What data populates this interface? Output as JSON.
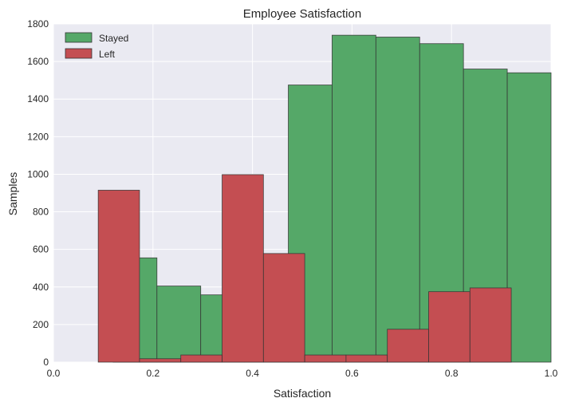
{
  "chart_data": {
    "type": "bar",
    "title": "Employee Satisfaction",
    "xlabel": "Satisfaction",
    "ylabel": "Samples",
    "xlim": [
      0.0,
      1.0
    ],
    "ylim": [
      0,
      1800
    ],
    "xticks": [
      "0.0",
      "0.2",
      "0.4",
      "0.6",
      "0.8",
      "1.0"
    ],
    "yticks": [
      "0",
      "200",
      "400",
      "600",
      "800",
      "1000",
      "1200",
      "1400",
      "1600",
      "1800"
    ],
    "grid": true,
    "legend_position": "top-left",
    "series": [
      {
        "name": "Stayed",
        "color": "#55a868",
        "bins": [
          {
            "x0": 0.12,
            "x1": 0.208,
            "value": 555
          },
          {
            "x0": 0.208,
            "x1": 0.296,
            "value": 405
          },
          {
            "x0": 0.296,
            "x1": 0.384,
            "value": 358
          },
          {
            "x0": 0.384,
            "x1": 0.472,
            "value": 30
          },
          {
            "x0": 0.472,
            "x1": 0.56,
            "value": 1475
          },
          {
            "x0": 0.56,
            "x1": 0.648,
            "value": 1740
          },
          {
            "x0": 0.648,
            "x1": 0.736,
            "value": 1730
          },
          {
            "x0": 0.736,
            "x1": 0.824,
            "value": 1695
          },
          {
            "x0": 0.824,
            "x1": 0.912,
            "value": 1560
          },
          {
            "x0": 0.912,
            "x1": 1.0,
            "value": 1540
          }
        ]
      },
      {
        "name": "Left",
        "color": "#c44e52",
        "bins": [
          {
            "x0": 0.09,
            "x1": 0.173,
            "value": 915
          },
          {
            "x0": 0.173,
            "x1": 0.256,
            "value": 18
          },
          {
            "x0": 0.256,
            "x1": 0.339,
            "value": 38
          },
          {
            "x0": 0.339,
            "x1": 0.422,
            "value": 998
          },
          {
            "x0": 0.422,
            "x1": 0.505,
            "value": 578
          },
          {
            "x0": 0.505,
            "x1": 0.588,
            "value": 38
          },
          {
            "x0": 0.588,
            "x1": 0.671,
            "value": 38
          },
          {
            "x0": 0.671,
            "x1": 0.754,
            "value": 175
          },
          {
            "x0": 0.754,
            "x1": 0.837,
            "value": 375
          },
          {
            "x0": 0.837,
            "x1": 0.92,
            "value": 395
          }
        ]
      }
    ],
    "style": {
      "background": "#eaeaf2",
      "grid_color": "#ffffff",
      "edge_color": "#333333"
    }
  }
}
